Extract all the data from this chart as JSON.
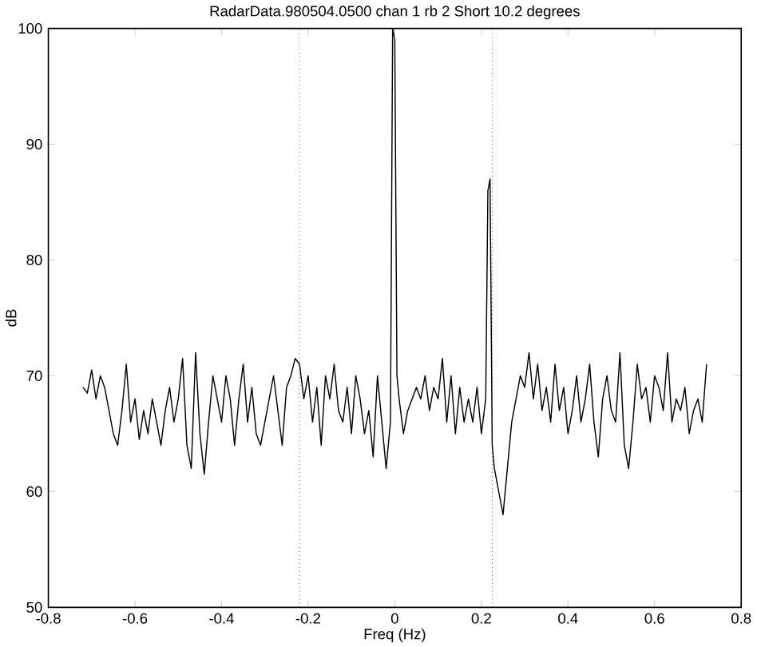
{
  "chart_data": {
    "type": "line",
    "title": "RadarData.980504.0500   chan 1 rb 2 Short   10.2 degrees",
    "xlabel": "Freq (Hz)",
    "ylabel": "dB",
    "xlim": [
      -0.8,
      0.8
    ],
    "ylim": [
      50,
      100
    ],
    "xticks": [
      -0.8,
      -0.6,
      -0.4,
      -0.2,
      0,
      0.2,
      0.4,
      0.6,
      0.8
    ],
    "yticks": [
      50,
      60,
      70,
      80,
      90,
      100
    ],
    "series": [
      {
        "color": "#000000",
        "x": [
          -0.72,
          -0.71,
          -0.7,
          -0.69,
          -0.68,
          -0.67,
          -0.66,
          -0.65,
          -0.64,
          -0.63,
          -0.62,
          -0.61,
          -0.6,
          -0.59,
          -0.58,
          -0.57,
          -0.56,
          -0.55,
          -0.54,
          -0.53,
          -0.52,
          -0.51,
          -0.5,
          -0.49,
          -0.48,
          -0.47,
          -0.46,
          -0.45,
          -0.44,
          -0.43,
          -0.42,
          -0.41,
          -0.4,
          -0.39,
          -0.38,
          -0.37,
          -0.36,
          -0.35,
          -0.34,
          -0.33,
          -0.32,
          -0.31,
          -0.3,
          -0.29,
          -0.28,
          -0.27,
          -0.26,
          -0.25,
          -0.24,
          -0.23,
          -0.22,
          -0.21,
          -0.2,
          -0.19,
          -0.18,
          -0.17,
          -0.16,
          -0.15,
          -0.14,
          -0.13,
          -0.12,
          -0.11,
          -0.1,
          -0.09,
          -0.08,
          -0.07,
          -0.06,
          -0.05,
          -0.04,
          -0.03,
          -0.02,
          -0.01,
          -0.005,
          0,
          0.005,
          0.01,
          0.02,
          0.03,
          0.04,
          0.05,
          0.06,
          0.07,
          0.08,
          0.09,
          0.1,
          0.11,
          0.12,
          0.13,
          0.14,
          0.15,
          0.16,
          0.17,
          0.18,
          0.19,
          0.2,
          0.21,
          0.215,
          0.22,
          0.225,
          0.23,
          0.24,
          0.25,
          0.26,
          0.27,
          0.28,
          0.29,
          0.3,
          0.31,
          0.32,
          0.33,
          0.34,
          0.35,
          0.36,
          0.37,
          0.38,
          0.39,
          0.4,
          0.41,
          0.42,
          0.43,
          0.44,
          0.45,
          0.46,
          0.47,
          0.48,
          0.49,
          0.5,
          0.51,
          0.52,
          0.53,
          0.54,
          0.55,
          0.56,
          0.57,
          0.58,
          0.59,
          0.6,
          0.61,
          0.62,
          0.63,
          0.64,
          0.65,
          0.66,
          0.67,
          0.68,
          0.69,
          0.7,
          0.71,
          0.72
        ],
        "values": [
          69,
          68.5,
          70.5,
          68,
          70,
          69,
          67,
          65,
          64,
          67,
          71,
          66,
          68,
          64.5,
          67,
          65,
          68,
          66,
          64,
          67,
          69,
          66,
          68,
          71.5,
          64,
          62,
          72,
          65,
          61.5,
          66,
          70,
          68,
          66,
          70,
          68,
          64,
          68,
          71,
          66,
          69,
          65,
          64,
          66,
          68,
          70,
          67,
          64,
          69,
          70,
          71.5,
          71,
          68,
          70,
          66,
          69,
          64,
          70,
          68,
          71,
          67,
          66,
          69,
          65,
          70,
          68,
          65,
          67,
          63,
          70,
          66,
          62,
          66,
          100,
          99,
          70,
          68,
          65,
          67,
          68,
          69,
          68,
          70,
          67,
          69,
          68,
          71.5,
          66,
          70,
          65,
          69,
          66,
          68,
          66,
          69,
          65,
          68,
          86,
          87,
          64,
          62,
          60,
          58,
          62,
          66,
          68,
          70,
          69,
          72,
          68,
          71,
          67,
          69,
          66,
          71,
          67,
          69,
          65,
          67,
          70,
          66,
          68,
          71,
          66,
          63,
          68,
          70,
          67,
          66,
          72,
          64,
          62,
          66,
          71,
          68,
          69,
          66,
          70,
          69,
          67,
          72,
          66,
          68,
          67,
          69,
          65,
          67,
          68,
          66,
          71
        ]
      }
    ],
    "ref_lines": [
      {
        "axis": "x",
        "value": -0.22,
        "line_style": "dotted"
      },
      {
        "axis": "x",
        "value": 0.225,
        "line_style": "dotted"
      }
    ]
  }
}
